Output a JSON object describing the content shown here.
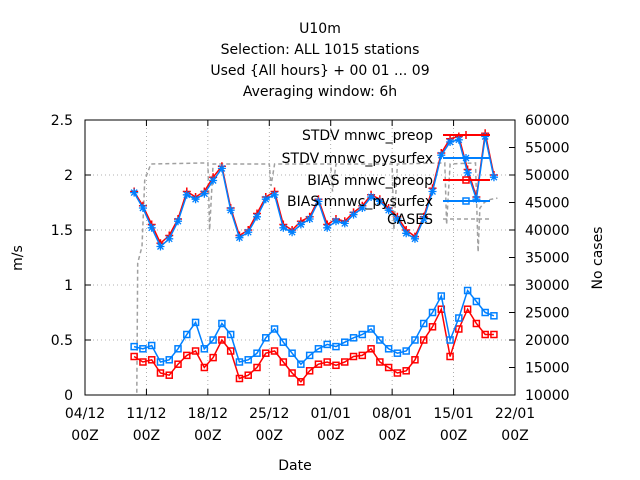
{
  "chart_data": {
    "type": "line",
    "title_lines": [
      "U10m",
      "Selection: ALL   1015 stations",
      "Used {All hours} + 00 01 ... 09",
      "Averaging window:  6h"
    ],
    "xlabel": "Date",
    "ylabel": "m/s",
    "y2label": "No cases",
    "x_ticks": [
      {
        "day": 0,
        "label1": "04/12",
        "label2": "00Z"
      },
      {
        "day": 7,
        "label1": "11/12",
        "label2": "00Z"
      },
      {
        "day": 14,
        "label1": "18/12",
        "label2": "00Z"
      },
      {
        "day": 21,
        "label1": "25/12",
        "label2": "00Z"
      },
      {
        "day": 28,
        "label1": "01/01",
        "label2": "00Z"
      },
      {
        "day": 35,
        "label1": "08/01",
        "label2": "00Z"
      },
      {
        "day": 42,
        "label1": "15/01",
        "label2": "00Z"
      },
      {
        "day": 49,
        "label1": "22/01",
        "label2": "00Z"
      }
    ],
    "xlim": [
      0,
      49
    ],
    "ylim": [
      0,
      2.5
    ],
    "y_ticks": [
      "0",
      "0.5",
      "1",
      "1.5",
      "2",
      "2.5"
    ],
    "y_tick_values": [
      0,
      0.5,
      1,
      1.5,
      2,
      2.5
    ],
    "y2lim": [
      10000,
      60000
    ],
    "y2_ticks": [
      "10000",
      "15000",
      "20000",
      "25000",
      "30000",
      "35000",
      "40000",
      "45000",
      "50000",
      "55000",
      "60000"
    ],
    "y2_tick_values": [
      10000,
      15000,
      20000,
      25000,
      30000,
      35000,
      40000,
      45000,
      50000,
      55000,
      60000
    ],
    "legend_position": "top-right",
    "colors": {
      "red": "#ff0000",
      "blue": "#0080ff",
      "gray": "#a0a0a0"
    },
    "x_days": [
      5.6,
      6.6,
      7.6,
      8.6,
      9.6,
      10.6,
      11.6,
      12.6,
      13.6,
      14.6,
      15.6,
      16.6,
      17.6,
      18.6,
      19.6,
      20.6,
      21.6,
      22.6,
      23.6,
      24.6,
      25.6,
      26.6,
      27.6,
      28.6,
      29.6,
      30.6,
      31.6,
      32.6,
      33.6,
      34.6,
      35.6,
      36.6,
      37.6,
      38.6,
      39.6,
      40.6,
      41.6,
      42.6,
      43.6,
      44.6,
      45.6,
      46.6
    ],
    "series": [
      {
        "name": "STDV mnwc_preop",
        "color": "#ff0000",
        "marker": "plus",
        "axis": "y",
        "values": [
          1.85,
          1.72,
          1.55,
          1.38,
          1.45,
          1.6,
          1.85,
          1.8,
          1.85,
          1.98,
          2.08,
          1.7,
          1.45,
          1.5,
          1.65,
          1.8,
          1.85,
          1.55,
          1.5,
          1.58,
          1.62,
          1.78,
          1.55,
          1.6,
          1.58,
          1.66,
          1.72,
          1.82,
          1.78,
          1.7,
          1.62,
          1.5,
          1.44,
          1.62,
          1.88,
          2.2,
          2.33,
          2.35,
          2.05,
          1.8,
          2.38,
          2.0
        ]
      },
      {
        "name": "STDV mnwc_pysurfex",
        "color": "#0080ff",
        "marker": "star",
        "axis": "y",
        "values": [
          1.84,
          1.7,
          1.52,
          1.35,
          1.42,
          1.58,
          1.82,
          1.78,
          1.83,
          1.95,
          2.06,
          1.68,
          1.43,
          1.48,
          1.62,
          1.78,
          1.82,
          1.52,
          1.48,
          1.55,
          1.6,
          1.76,
          1.52,
          1.58,
          1.56,
          1.64,
          1.7,
          1.8,
          1.76,
          1.68,
          1.6,
          1.47,
          1.42,
          1.6,
          1.85,
          2.18,
          2.3,
          2.32,
          2.02,
          1.78,
          2.35,
          1.98
        ]
      },
      {
        "name": "BIAS mnwc_preop",
        "color": "#ff0000",
        "marker": "square",
        "axis": "y",
        "values": [
          0.35,
          0.3,
          0.32,
          0.2,
          0.18,
          0.28,
          0.36,
          0.4,
          0.25,
          0.34,
          0.5,
          0.4,
          0.15,
          0.18,
          0.25,
          0.38,
          0.4,
          0.3,
          0.2,
          0.12,
          0.22,
          0.28,
          0.3,
          0.27,
          0.3,
          0.35,
          0.36,
          0.42,
          0.3,
          0.25,
          0.2,
          0.22,
          0.32,
          0.5,
          0.62,
          0.78,
          0.35,
          0.6,
          0.78,
          0.65,
          0.55,
          0.55
        ]
      },
      {
        "name": "BIAS mnwc_pysurfex",
        "color": "#0080ff",
        "marker": "square",
        "axis": "y",
        "values": [
          0.44,
          0.42,
          0.45,
          0.3,
          0.32,
          0.42,
          0.55,
          0.66,
          0.42,
          0.5,
          0.65,
          0.55,
          0.3,
          0.32,
          0.38,
          0.52,
          0.6,
          0.48,
          0.38,
          0.28,
          0.36,
          0.42,
          0.46,
          0.44,
          0.48,
          0.52,
          0.55,
          0.6,
          0.5,
          0.42,
          0.38,
          0.4,
          0.5,
          0.65,
          0.75,
          0.9,
          0.5,
          0.7,
          0.95,
          0.85,
          0.75,
          0.72
        ]
      },
      {
        "name": "CASES",
        "color": "#a0a0a0",
        "style": "dashed",
        "axis": "y2",
        "points": [
          [
            5.9,
            10400
          ],
          [
            6.0,
            34000
          ],
          [
            6.5,
            37000
          ],
          [
            6.8,
            49000
          ],
          [
            7.5,
            52000
          ],
          [
            14.0,
            52200
          ],
          [
            14.2,
            40000
          ],
          [
            14.6,
            52000
          ],
          [
            21.0,
            52000
          ],
          [
            21.2,
            48000
          ],
          [
            21.6,
            52000
          ],
          [
            28.0,
            52000
          ],
          [
            28.2,
            47000
          ],
          [
            28.6,
            52000
          ],
          [
            35.0,
            52000
          ],
          [
            35.2,
            40000
          ],
          [
            35.6,
            52000
          ],
          [
            41.0,
            52200
          ],
          [
            41.2,
            41000
          ],
          [
            41.6,
            52000
          ],
          [
            44.5,
            52200
          ],
          [
            44.8,
            36000
          ],
          [
            45.0,
            44000
          ],
          [
            45.5,
            45000
          ],
          [
            46.0,
            45500
          ],
          [
            47.0,
            45800
          ]
        ]
      }
    ]
  }
}
